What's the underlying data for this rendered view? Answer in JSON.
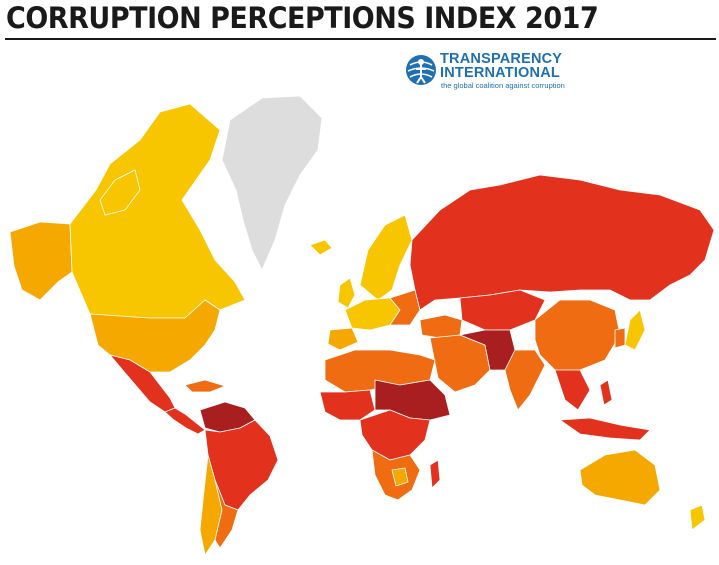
{
  "title": "CORRUPTION PERCEPTIONS INDEX 2017",
  "logo": {
    "line1": "TRANSPARENCY",
    "line2": "INTERNATIONAL",
    "tagline": "the global coalition against corruption",
    "color": "#1f6fb3"
  },
  "palette": {
    "highest": "#f7c600",
    "high": "#f5a800",
    "mid": "#ef6c12",
    "low": "#e2321e",
    "lowest": "#a91e1e",
    "no_data": "#dddddd"
  }
}
